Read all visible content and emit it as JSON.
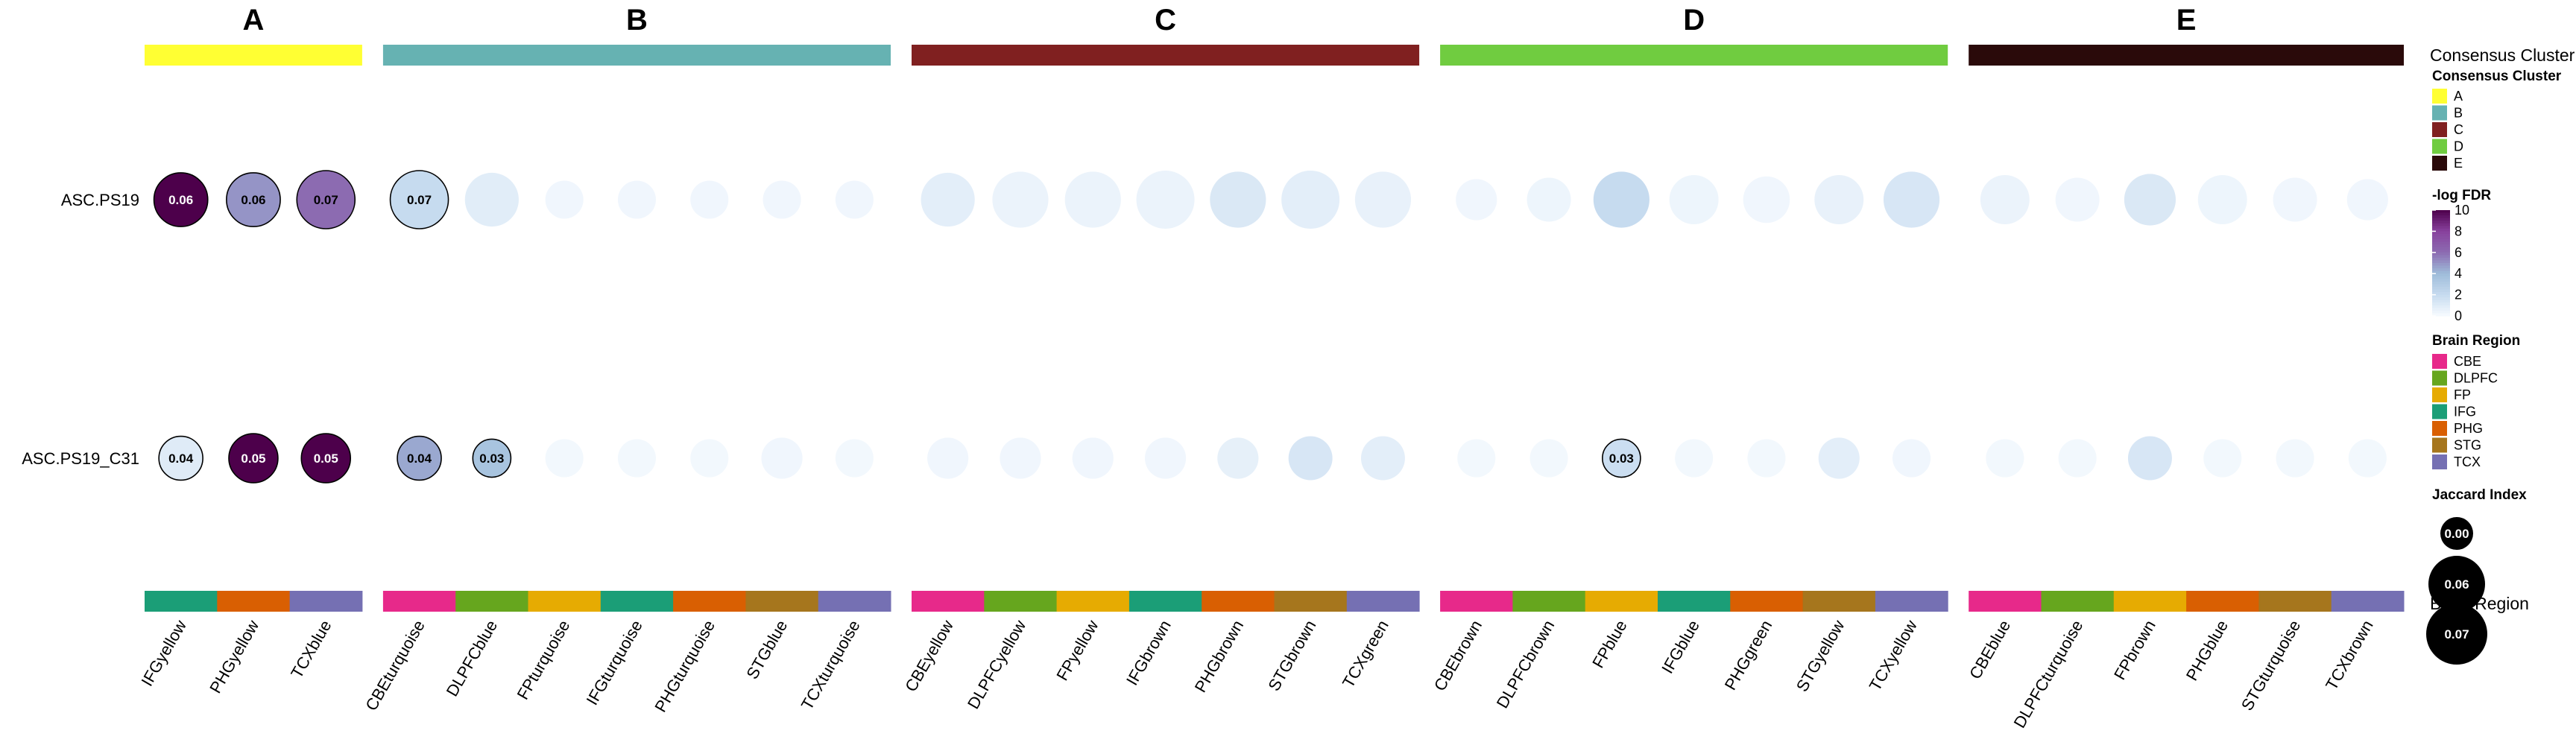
{
  "chart_data": {
    "type": "bubble-heatmap",
    "rows": [
      "ASC.PS19",
      "ASC.PS19_C31"
    ],
    "groups": [
      {
        "name": "A",
        "color": "#ffff33",
        "columns": [
          {
            "label": "IFGyellow",
            "region": "IFG",
            "fdr": [
              10.0,
              1.0
            ],
            "size": [
              0.06,
              0.04
            ],
            "value_label": [
              "0.06",
              "0.04"
            ]
          },
          {
            "label": "PHGyellow",
            "region": "PHG",
            "fdr": [
              5.0,
              10.0
            ],
            "size": [
              0.06,
              0.05
            ],
            "value_label": [
              "0.06",
              "0.05"
            ]
          },
          {
            "label": "TCXblue",
            "region": "TCX",
            "fdr": [
              6.0,
              10.0
            ],
            "size": [
              0.07,
              0.05
            ],
            "value_label": [
              "0.07",
              "0.05"
            ]
          }
        ]
      },
      {
        "name": "B",
        "color": "#66b2b2",
        "columns": [
          {
            "label": "CBEturquoise",
            "region": "CBE",
            "fdr": [
              2.0,
              4.5
            ],
            "size": [
              0.07,
              0.04
            ],
            "value_label": [
              "0.07",
              "0.04"
            ]
          },
          {
            "label": "DLPFCblue",
            "region": "DLPFC",
            "fdr": [
              0.9,
              3.5
            ],
            "size": [
              0.06,
              0.03
            ],
            "value_label": [
              "",
              "0.03"
            ]
          },
          {
            "label": "FPturquoise",
            "region": "FP",
            "fdr": [
              0.3,
              0.2
            ],
            "size": [
              0.03,
              0.03
            ],
            "value_label": [
              "",
              ""
            ]
          },
          {
            "label": "IFGturquoise",
            "region": "IFG",
            "fdr": [
              0.3,
              0.2
            ],
            "size": [
              0.03,
              0.03
            ],
            "value_label": [
              "",
              ""
            ]
          },
          {
            "label": "PHGturquoise",
            "region": "PHG",
            "fdr": [
              0.3,
              0.2
            ],
            "size": [
              0.03,
              0.03
            ],
            "value_label": [
              "",
              ""
            ]
          },
          {
            "label": "STGblue",
            "region": "STG",
            "fdr": [
              0.3,
              0.3
            ],
            "size": [
              0.03,
              0.035
            ],
            "value_label": [
              "",
              ""
            ]
          },
          {
            "label": "TCXturquoise",
            "region": "TCX",
            "fdr": [
              0.3,
              0.2
            ],
            "size": [
              0.03,
              0.03
            ],
            "value_label": [
              "",
              ""
            ]
          }
        ]
      },
      {
        "name": "C",
        "color": "#802020",
        "columns": [
          {
            "label": "CBEyellow",
            "region": "CBE",
            "fdr": [
              0.8,
              0.3
            ],
            "size": [
              0.06,
              0.035
            ],
            "value_label": [
              "",
              ""
            ]
          },
          {
            "label": "DLPFCyellow",
            "region": "DLPFC",
            "fdr": [
              0.5,
              0.3
            ],
            "size": [
              0.065,
              0.035
            ],
            "value_label": [
              "",
              ""
            ]
          },
          {
            "label": "FPyellow",
            "region": "FP",
            "fdr": [
              0.5,
              0.3
            ],
            "size": [
              0.065,
              0.035
            ],
            "value_label": [
              "",
              ""
            ]
          },
          {
            "label": "IFGbrown",
            "region": "IFG",
            "fdr": [
              0.5,
              0.3
            ],
            "size": [
              0.07,
              0.035
            ],
            "value_label": [
              "",
              ""
            ]
          },
          {
            "label": "PHGbrown",
            "region": "PHG",
            "fdr": [
              1.2,
              0.7
            ],
            "size": [
              0.065,
              0.035
            ],
            "value_label": [
              "",
              ""
            ]
          },
          {
            "label": "STGbrown",
            "region": "STG",
            "fdr": [
              0.8,
              1.3
            ],
            "size": [
              0.07,
              0.04
            ],
            "value_label": [
              "",
              ""
            ]
          },
          {
            "label": "TCXgreen",
            "region": "TCX",
            "fdr": [
              0.6,
              0.8
            ],
            "size": [
              0.065,
              0.04
            ],
            "value_label": [
              "",
              ""
            ]
          }
        ]
      },
      {
        "name": "D",
        "color": "#70cc40",
        "columns": [
          {
            "label": "CBEbrown",
            "region": "CBE",
            "fdr": [
              0.3,
              0.2
            ],
            "size": [
              0.035,
              0.03
            ],
            "value_label": [
              "",
              ""
            ]
          },
          {
            "label": "DLPFCbrown",
            "region": "DLPFC",
            "fdr": [
              0.4,
              0.2
            ],
            "size": [
              0.04,
              0.03
            ],
            "value_label": [
              "",
              ""
            ]
          },
          {
            "label": "FPblue",
            "region": "FP",
            "fdr": [
              2.0,
              1.8
            ],
            "size": [
              0.065,
              0.03
            ],
            "value_label": [
              "",
              "0.03"
            ]
          },
          {
            "label": "IFGblue",
            "region": "IFG",
            "fdr": [
              0.4,
              0.2
            ],
            "size": [
              0.05,
              0.03
            ],
            "value_label": [
              "",
              ""
            ]
          },
          {
            "label": "PHGgreen",
            "region": "PHG",
            "fdr": [
              0.3,
              0.2
            ],
            "size": [
              0.045,
              0.03
            ],
            "value_label": [
              "",
              ""
            ]
          },
          {
            "label": "STGyellow",
            "region": "STG",
            "fdr": [
              0.6,
              0.8
            ],
            "size": [
              0.05,
              0.035
            ],
            "value_label": [
              "",
              ""
            ]
          },
          {
            "label": "TCXyellow",
            "region": "TCX",
            "fdr": [
              1.3,
              0.3
            ],
            "size": [
              0.065,
              0.03
            ],
            "value_label": [
              "",
              ""
            ]
          }
        ]
      },
      {
        "name": "E",
        "color": "#2a0a0a",
        "columns": [
          {
            "label": "CBEblue",
            "region": "CBE",
            "fdr": [
              0.5,
              0.2
            ],
            "size": [
              0.05,
              0.03
            ],
            "value_label": [
              "",
              ""
            ]
          },
          {
            "label": "DLPFCturquoise",
            "region": "DLPFC",
            "fdr": [
              0.3,
              0.2
            ],
            "size": [
              0.04,
              0.03
            ],
            "value_label": [
              "",
              ""
            ]
          },
          {
            "label": "FPbrown",
            "region": "FP",
            "fdr": [
              1.2,
              1.3
            ],
            "size": [
              0.055,
              0.04
            ],
            "value_label": [
              "",
              ""
            ]
          },
          {
            "label": "PHGblue",
            "region": "PHG",
            "fdr": [
              0.4,
              0.2
            ],
            "size": [
              0.05,
              0.03
            ],
            "value_label": [
              "",
              ""
            ]
          },
          {
            "label": "STGturquoise",
            "region": "STG",
            "fdr": [
              0.3,
              0.2
            ],
            "size": [
              0.04,
              0.03
            ],
            "value_label": [
              "",
              ""
            ]
          },
          {
            "label": "TCXbrown",
            "region": "TCX",
            "fdr": [
              0.3,
              0.2
            ],
            "size": [
              0.035,
              0.03
            ],
            "value_label": [
              "",
              ""
            ]
          }
        ]
      }
    ],
    "region_colors": {
      "CBE": "#e7298a",
      "DLPFC": "#66a61e",
      "FP": "#e6ab02",
      "IFG": "#1b9e77",
      "PHG": "#d95f02",
      "STG": "#a6761d",
      "TCX": "#7570b3"
    },
    "fdr_scale": {
      "min": 0,
      "max": 10,
      "ticks": [
        "10",
        "8",
        "6",
        "4",
        "2",
        "0"
      ],
      "colors": [
        "#f7fbff",
        "#c6dbef",
        "#9ebcda",
        "#8c6bb1",
        "#88419d",
        "#4d004b"
      ]
    },
    "legend": {
      "top_label": "Consensus Cluster",
      "cluster_title": "Consensus Cluster",
      "cluster_items": [
        "A",
        "B",
        "C",
        "D",
        "E"
      ],
      "fdr_title": "-log FDR",
      "region_title": "Brain Region",
      "region_items": [
        "CBE",
        "DLPFC",
        "FP",
        "IFG",
        "PHG",
        "STG",
        "TCX"
      ],
      "bottom_label": "Brain Region",
      "jaccard_title": "Jaccard Index",
      "jaccard_items": [
        "0.00",
        "0.06",
        "0.07"
      ]
    }
  }
}
